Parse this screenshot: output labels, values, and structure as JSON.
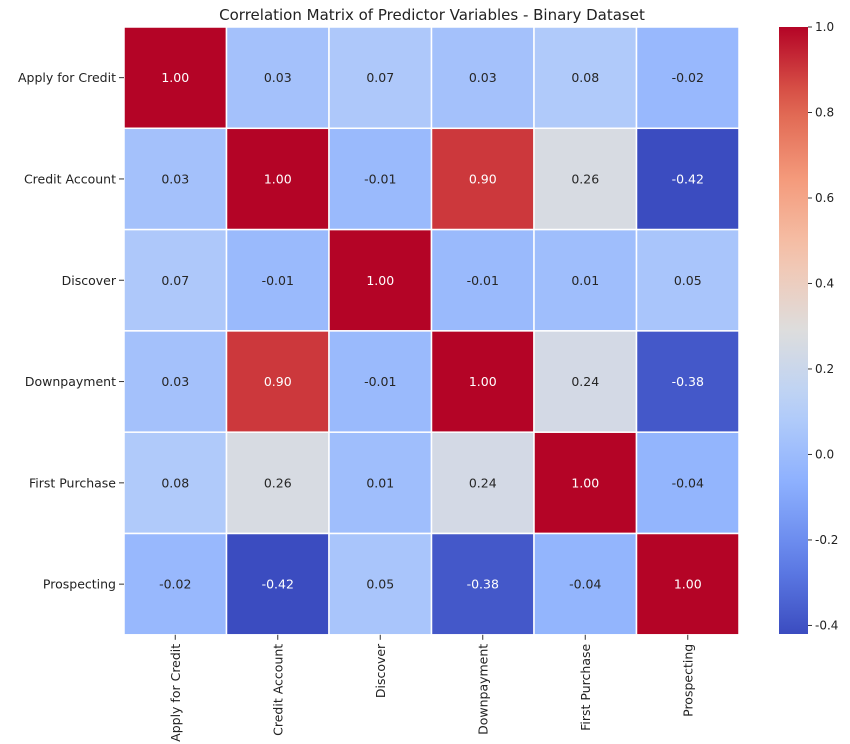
{
  "chart_data": {
    "type": "heatmap",
    "title": "Correlation Matrix of Predictor Variables - Binary Dataset",
    "row_labels": [
      "Apply for Credit",
      "Credit Account",
      "Discover",
      "Downpayment",
      "First Purchase",
      "Prospecting"
    ],
    "col_labels": [
      "Apply for Credit",
      "Credit Account",
      "Discover",
      "Downpayment",
      "First Purchase",
      "Prospecting"
    ],
    "values": [
      [
        1.0,
        0.03,
        0.07,
        0.03,
        0.08,
        -0.02
      ],
      [
        0.03,
        1.0,
        -0.01,
        0.9,
        0.26,
        -0.42
      ],
      [
        0.07,
        -0.01,
        1.0,
        -0.01,
        0.01,
        0.05
      ],
      [
        0.03,
        0.9,
        -0.01,
        1.0,
        0.24,
        -0.38
      ],
      [
        0.08,
        0.26,
        0.01,
        0.24,
        1.0,
        -0.04
      ],
      [
        -0.02,
        -0.42,
        0.05,
        -0.38,
        -0.04,
        1.0
      ]
    ],
    "colormap": "coolwarm",
    "vmin": -0.42,
    "vmax": 1.0,
    "colorbar_ticks": [
      "1.0",
      "0.8",
      "0.6",
      "0.4",
      "0.2",
      "0.0",
      "-0.2",
      "-0.4"
    ],
    "colorbar_tick_values": [
      1.0,
      0.8,
      0.6,
      0.4,
      0.2,
      0.0,
      -0.2,
      -0.4
    ],
    "value_format": "2 decimals",
    "grid_lines": "white"
  }
}
